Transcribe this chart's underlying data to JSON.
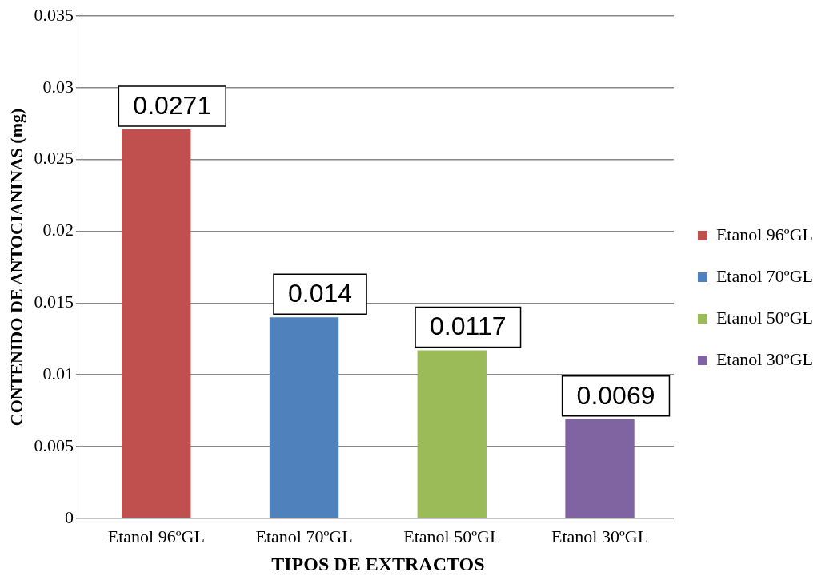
{
  "chart_data": {
    "type": "bar",
    "xlabel": "TIPOS DE EXTRACTOS",
    "ylabel": "CONTENIDO DE ANTOCIANINAS (mg)",
    "categories": [
      "Etanol 96ºGL",
      "Etanol 70ºGL",
      "Etanol 50ºGL",
      "Etanol 30ºGL"
    ],
    "series": [
      {
        "name": "Etanol 96ºGL",
        "color": "#c0504d",
        "values": [
          0.0271,
          null,
          null,
          null
        ]
      },
      {
        "name": "Etanol 70ºGL",
        "color": "#4f81bd",
        "values": [
          null,
          0.014,
          null,
          null
        ]
      },
      {
        "name": "Etanol 50ºGL",
        "color": "#9bbb59",
        "values": [
          null,
          null,
          0.0117,
          null
        ]
      },
      {
        "name": "Etanol 30ºGL",
        "color": "#8064a2",
        "values": [
          null,
          null,
          null,
          0.0069
        ]
      }
    ],
    "ylim": [
      0,
      0.035
    ],
    "yticks": [
      0,
      0.005,
      0.01,
      0.015,
      0.02,
      0.025,
      0.03,
      0.035
    ],
    "grid": "y",
    "legend": "right",
    "data_labels": true
  }
}
